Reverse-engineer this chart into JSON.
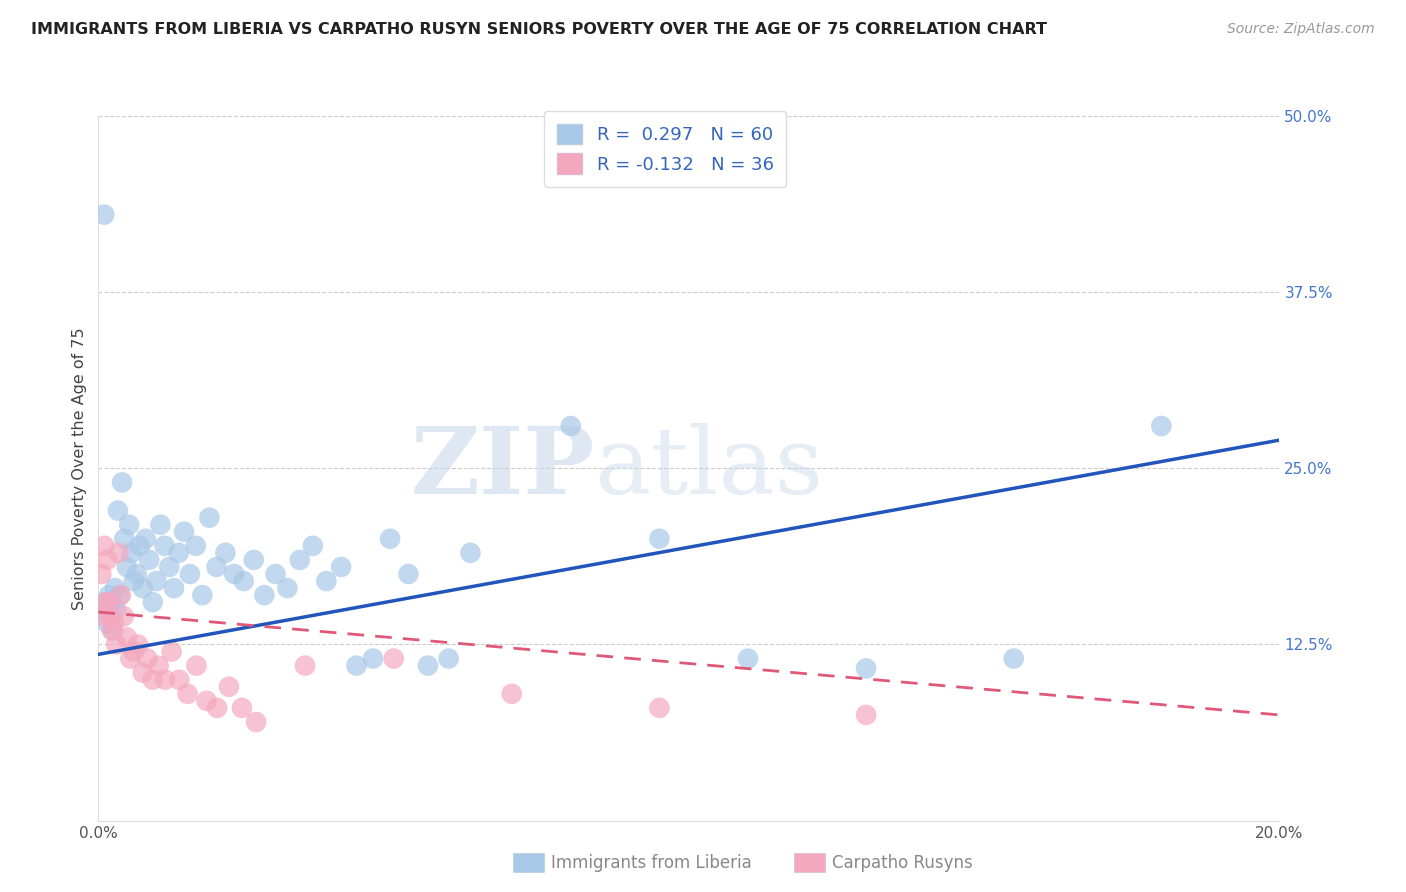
{
  "title": "IMMIGRANTS FROM LIBERIA VS CARPATHO RUSYN SENIORS POVERTY OVER THE AGE OF 75 CORRELATION CHART",
  "source": "Source: ZipAtlas.com",
  "ylabel": "Seniors Poverty Over the Age of 75",
  "xlabel_liberia": "Immigrants from Liberia",
  "xlabel_carpatho": "Carpatho Rusyns",
  "xmin": 0.0,
  "xmax": 0.2,
  "ymin": 0.0,
  "ymax": 0.5,
  "yticks": [
    0.0,
    0.125,
    0.25,
    0.375,
    0.5
  ],
  "ytick_labels": [
    "",
    "12.5%",
    "25.0%",
    "37.5%",
    "50.0%"
  ],
  "xticks": [
    0.0,
    0.05,
    0.1,
    0.15,
    0.2
  ],
  "xtick_labels": [
    "0.0%",
    "",
    "",
    "",
    "20.0%"
  ],
  "R_liberia": 0.297,
  "N_liberia": 60,
  "R_carpatho": -0.132,
  "N_carpatho": 36,
  "color_liberia": "#a8c8e8",
  "color_liberia_line": "#2255bb",
  "color_carpatho": "#f4a8be",
  "color_carpatho_line": "#e05878",
  "watermark_zip": "ZIP",
  "watermark_atlas": "atlas",
  "bg_color": "#ffffff",
  "grid_color": "#cccccc",
  "liberia_x": [
    0.0008,
    0.001,
    0.0012,
    0.0015,
    0.0018,
    0.002,
    0.0022,
    0.0025,
    0.0028,
    0.003,
    0.0033,
    0.0036,
    0.004,
    0.0044,
    0.0048,
    0.0052,
    0.0056,
    0.006,
    0.0065,
    0.007,
    0.0075,
    0.008,
    0.0086,
    0.0092,
    0.0098,
    0.0105,
    0.0112,
    0.012,
    0.0128,
    0.0136,
    0.0145,
    0.0155,
    0.0165,
    0.0176,
    0.0188,
    0.02,
    0.0215,
    0.023,
    0.0246,
    0.0263,
    0.0281,
    0.03,
    0.032,
    0.0341,
    0.0363,
    0.0386,
    0.0411,
    0.0437,
    0.0465,
    0.0494,
    0.0525,
    0.0558,
    0.0593,
    0.063,
    0.08,
    0.095,
    0.11,
    0.13,
    0.155,
    0.18
  ],
  "liberia_y": [
    0.15,
    0.43,
    0.155,
    0.14,
    0.16,
    0.145,
    0.155,
    0.135,
    0.165,
    0.15,
    0.22,
    0.16,
    0.24,
    0.2,
    0.18,
    0.21,
    0.19,
    0.17,
    0.175,
    0.195,
    0.165,
    0.2,
    0.185,
    0.155,
    0.17,
    0.21,
    0.195,
    0.18,
    0.165,
    0.19,
    0.205,
    0.175,
    0.195,
    0.16,
    0.215,
    0.18,
    0.19,
    0.175,
    0.17,
    0.185,
    0.16,
    0.175,
    0.165,
    0.185,
    0.195,
    0.17,
    0.18,
    0.11,
    0.115,
    0.2,
    0.175,
    0.11,
    0.115,
    0.19,
    0.28,
    0.2,
    0.115,
    0.108,
    0.115,
    0.28
  ],
  "carpatho_x": [
    0.0005,
    0.0008,
    0.001,
    0.0012,
    0.0015,
    0.0018,
    0.002,
    0.0023,
    0.0026,
    0.003,
    0.0034,
    0.0038,
    0.0043,
    0.0048,
    0.0054,
    0.006,
    0.0067,
    0.0075,
    0.0083,
    0.0092,
    0.0102,
    0.0113,
    0.0124,
    0.0137,
    0.0151,
    0.0166,
    0.0183,
    0.0201,
    0.0221,
    0.0243,
    0.0267,
    0.035,
    0.05,
    0.07,
    0.095,
    0.13
  ],
  "carpatho_y": [
    0.175,
    0.145,
    0.195,
    0.155,
    0.185,
    0.155,
    0.145,
    0.135,
    0.14,
    0.125,
    0.19,
    0.16,
    0.145,
    0.13,
    0.115,
    0.12,
    0.125,
    0.105,
    0.115,
    0.1,
    0.11,
    0.1,
    0.12,
    0.1,
    0.09,
    0.11,
    0.085,
    0.08,
    0.095,
    0.08,
    0.07,
    0.11,
    0.115,
    0.09,
    0.08,
    0.075
  ],
  "liberia_trend_x": [
    0.0,
    0.2
  ],
  "liberia_trend_y": [
    0.118,
    0.27
  ],
  "carpatho_trend_x": [
    0.0,
    0.2
  ],
  "carpatho_trend_y": [
    0.148,
    0.075
  ]
}
